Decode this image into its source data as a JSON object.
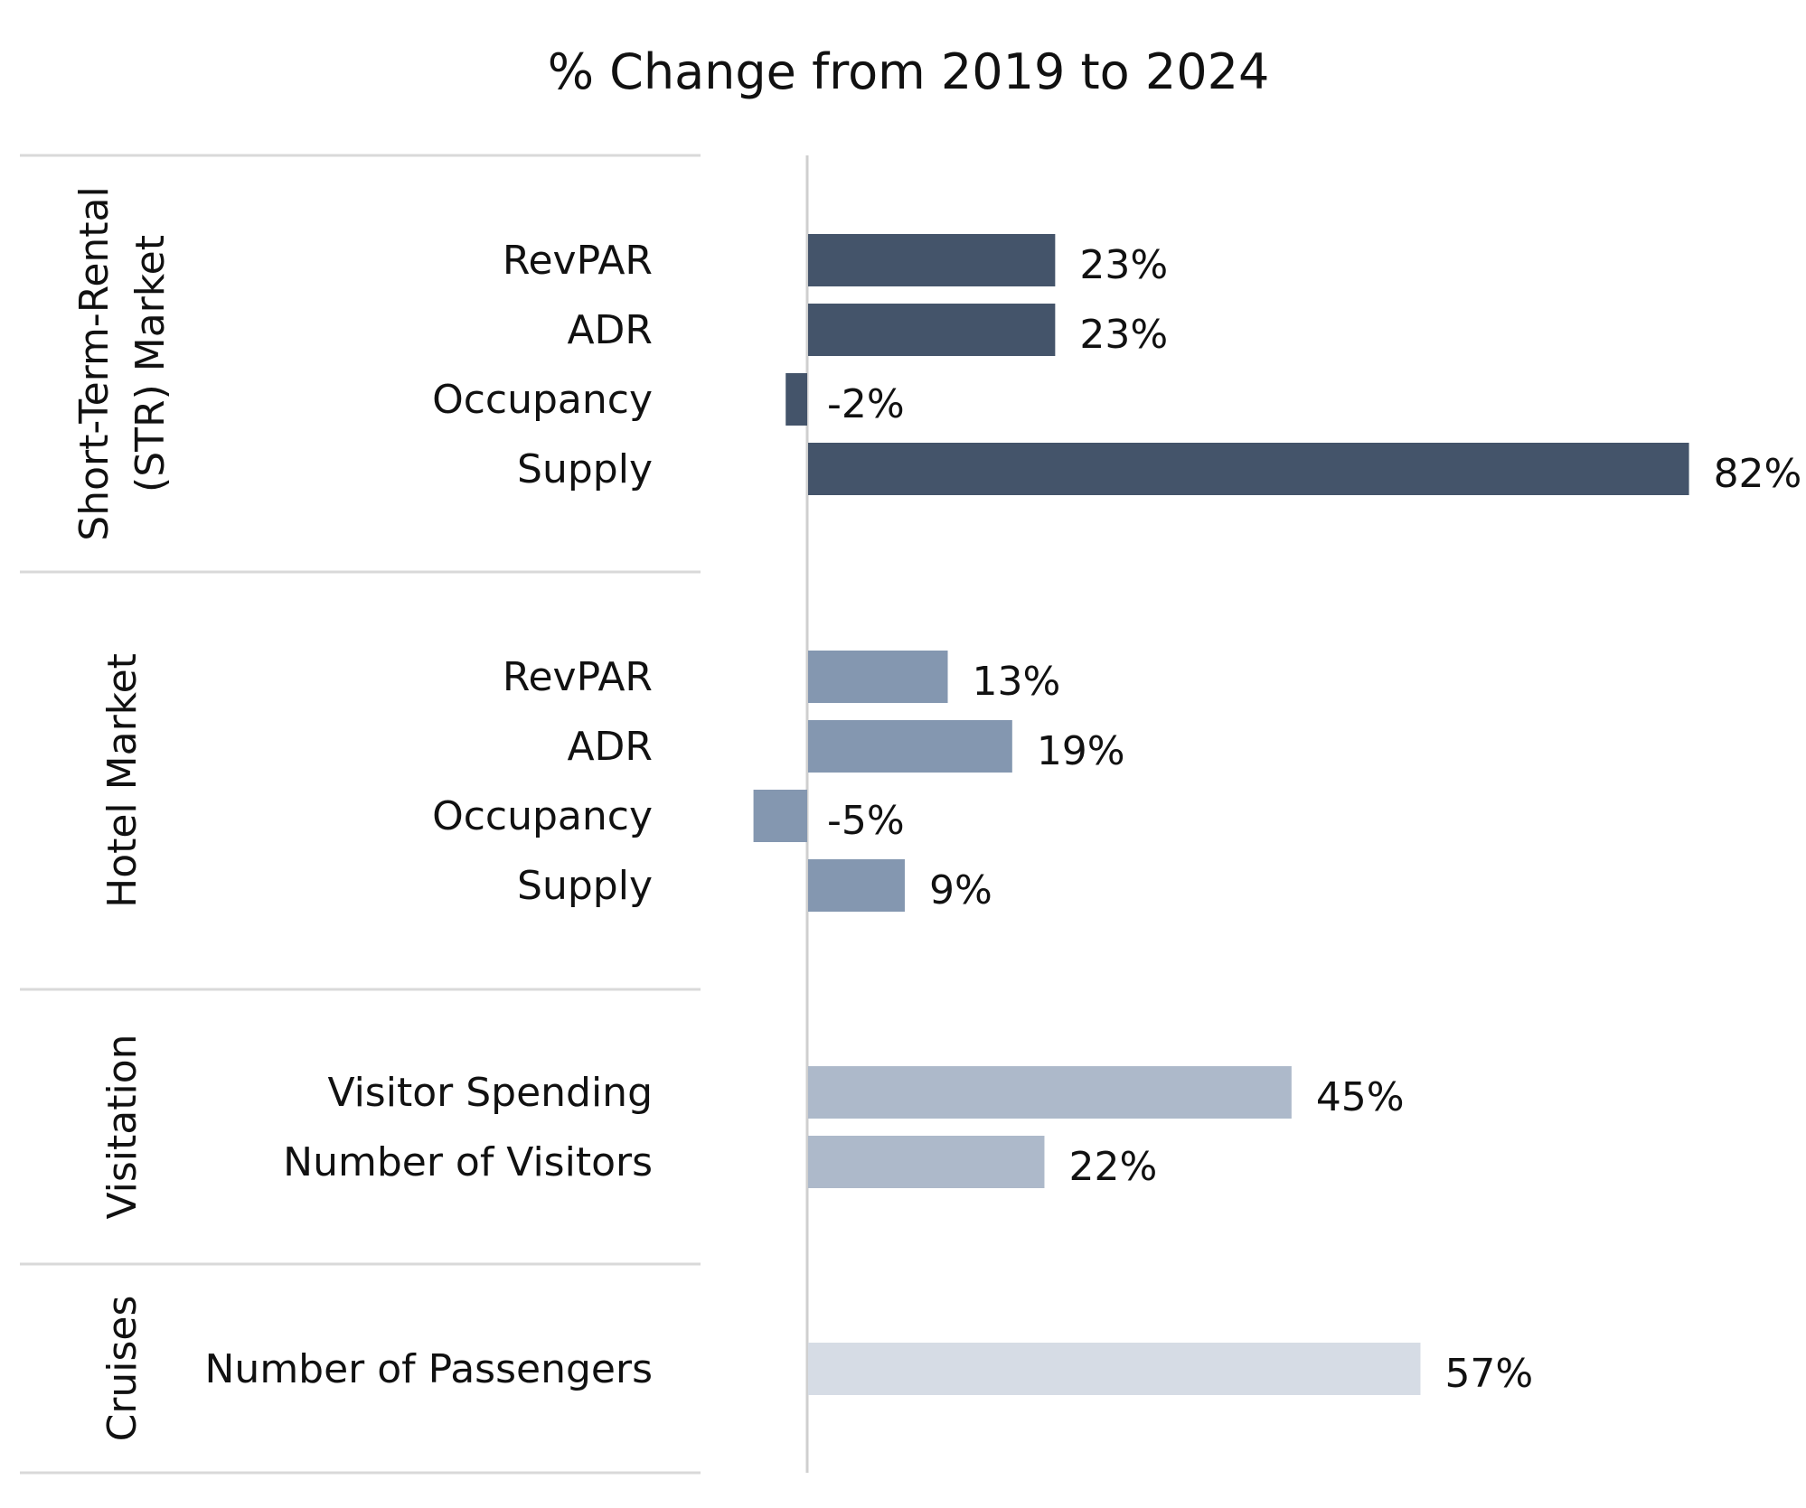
{
  "chart_data": {
    "type": "bar",
    "orientation": "horizontal",
    "title": "% Change from 2019 to 2024",
    "value_format": "percent",
    "grid": false,
    "legend": "none",
    "groups": [
      {
        "name": "Short-Term-Rental (STR) Market",
        "name_lines": [
          "Short-Term-Rental",
          "(STR) Market"
        ],
        "color": "#44546a",
        "categories": [
          "RevPAR",
          "ADR",
          "Occupancy",
          "Supply"
        ],
        "values": [
          23,
          23,
          -2,
          82
        ]
      },
      {
        "name": "Hotel Market",
        "name_lines": [
          "Hotel Market"
        ],
        "color": "#8497b0",
        "categories": [
          "RevPAR",
          "ADR",
          "Occupancy",
          "Supply"
        ],
        "values": [
          13,
          19,
          -5,
          9
        ]
      },
      {
        "name": "Visitation",
        "name_lines": [
          "Visitation"
        ],
        "color": "#adb9ca",
        "categories": [
          "Visitor Spending",
          "Number of Visitors"
        ],
        "values": [
          45,
          22
        ]
      },
      {
        "name": "Cruises",
        "name_lines": [
          "Cruises"
        ],
        "color": "#d6dce5",
        "categories": [
          "Number of Passengers"
        ],
        "values": [
          57
        ]
      }
    ]
  }
}
